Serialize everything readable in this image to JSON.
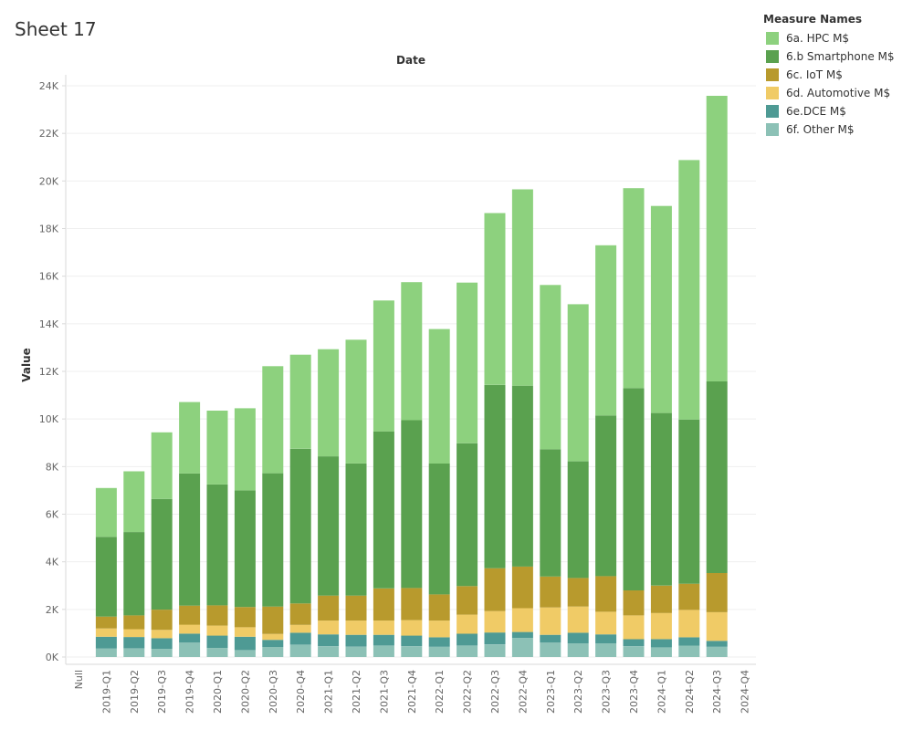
{
  "sheet": {
    "title": "Sheet 17"
  },
  "legend": {
    "title": "Measure Names",
    "items": [
      {
        "label": "6a. HPC M$",
        "color": "#8dd17e"
      },
      {
        "label": "6.b Smartphone M$",
        "color": "#5aa14f"
      },
      {
        "label": "6c. IoT M$",
        "color": "#b89a2d"
      },
      {
        "label": "6d. Automotive M$",
        "color": "#f0cb66"
      },
      {
        "label": "6e.DCE M$",
        "color": "#4e9a94"
      },
      {
        "label": "6f. Other M$",
        "color": "#8cc1b6"
      }
    ]
  },
  "chart_data": {
    "type": "bar",
    "stacked": true,
    "title": "Sheet 17",
    "column_header": "Date",
    "ylabel": "Value",
    "ylim": [
      0,
      24000
    ],
    "y_ticks": [
      {
        "value": 0,
        "label": "0K"
      },
      {
        "value": 2000,
        "label": "2K"
      },
      {
        "value": 4000,
        "label": "4K"
      },
      {
        "value": 6000,
        "label": "6K"
      },
      {
        "value": 8000,
        "label": "8K"
      },
      {
        "value": 10000,
        "label": "10K"
      },
      {
        "value": 12000,
        "label": "12K"
      },
      {
        "value": 14000,
        "label": "14K"
      },
      {
        "value": 16000,
        "label": "16K"
      },
      {
        "value": 18000,
        "label": "18K"
      },
      {
        "value": 20000,
        "label": "20K"
      },
      {
        "value": 22000,
        "label": "22K"
      },
      {
        "value": 24000,
        "label": "24K"
      }
    ],
    "grid": true,
    "categories": [
      "Null",
      "2019-Q1",
      "2019-Q2",
      "2019-Q3",
      "2019-Q4",
      "2020-Q1",
      "2020-Q2",
      "2020-Q3",
      "2020-Q4",
      "2021-Q1",
      "2021-Q2",
      "2021-Q3",
      "2021-Q4",
      "2022-Q1",
      "2022-Q2",
      "2022-Q3",
      "2022-Q4",
      "2023-Q1",
      "2023-Q2",
      "2023-Q3",
      "2023-Q4",
      "2024-Q1",
      "2024-Q2",
      "2024-Q3",
      "2024-Q4"
    ],
    "series": [
      {
        "name": "6f. Other M$",
        "color": "#8cc1b6",
        "values": [
          null,
          350,
          370,
          340,
          600,
          380,
          290,
          420,
          520,
          450,
          430,
          480,
          450,
          430,
          480,
          530,
          800,
          600,
          570,
          570,
          450,
          400,
          480,
          430,
          null
        ]
      },
      {
        "name": "6e.DCE M$",
        "color": "#4e9a94",
        "values": [
          null,
          500,
          470,
          450,
          380,
          520,
          560,
          300,
          500,
          500,
          500,
          450,
          450,
          400,
          500,
          500,
          250,
          330,
          450,
          380,
          300,
          350,
          350,
          250,
          null
        ]
      },
      {
        "name": "6d. Automotive M$",
        "color": "#f0cb66",
        "values": [
          null,
          350,
          330,
          350,
          380,
          420,
          400,
          250,
          330,
          580,
          600,
          600,
          650,
          700,
          800,
          900,
          1000,
          1150,
          1100,
          950,
          1000,
          1100,
          1150,
          1200,
          null
        ]
      },
      {
        "name": "6c. IoT M$",
        "color": "#b89a2d",
        "values": [
          null,
          500,
          580,
          850,
          800,
          850,
          850,
          1150,
          900,
          1050,
          1050,
          1350,
          1350,
          1100,
          1200,
          1800,
          1750,
          1300,
          1200,
          1500,
          1050,
          1150,
          1100,
          1650,
          null
        ]
      },
      {
        "name": "6.b Smartphone M$",
        "color": "#5aa14f",
        "values": [
          null,
          3350,
          3500,
          4650,
          5550,
          5080,
          4900,
          5600,
          6500,
          5850,
          5550,
          6600,
          7050,
          5500,
          6000,
          7700,
          7600,
          5350,
          4900,
          6750,
          8500,
          7250,
          6900,
          8050,
          null
        ]
      },
      {
        "name": "6a. HPC M$",
        "color": "#8dd17e",
        "values": [
          null,
          2050,
          2550,
          2800,
          3000,
          3100,
          3450,
          4500,
          3950,
          4500,
          5200,
          5500,
          5800,
          5650,
          6750,
          7220,
          8250,
          6900,
          6600,
          7150,
          8400,
          8700,
          10900,
          12000,
          null
        ]
      }
    ]
  }
}
